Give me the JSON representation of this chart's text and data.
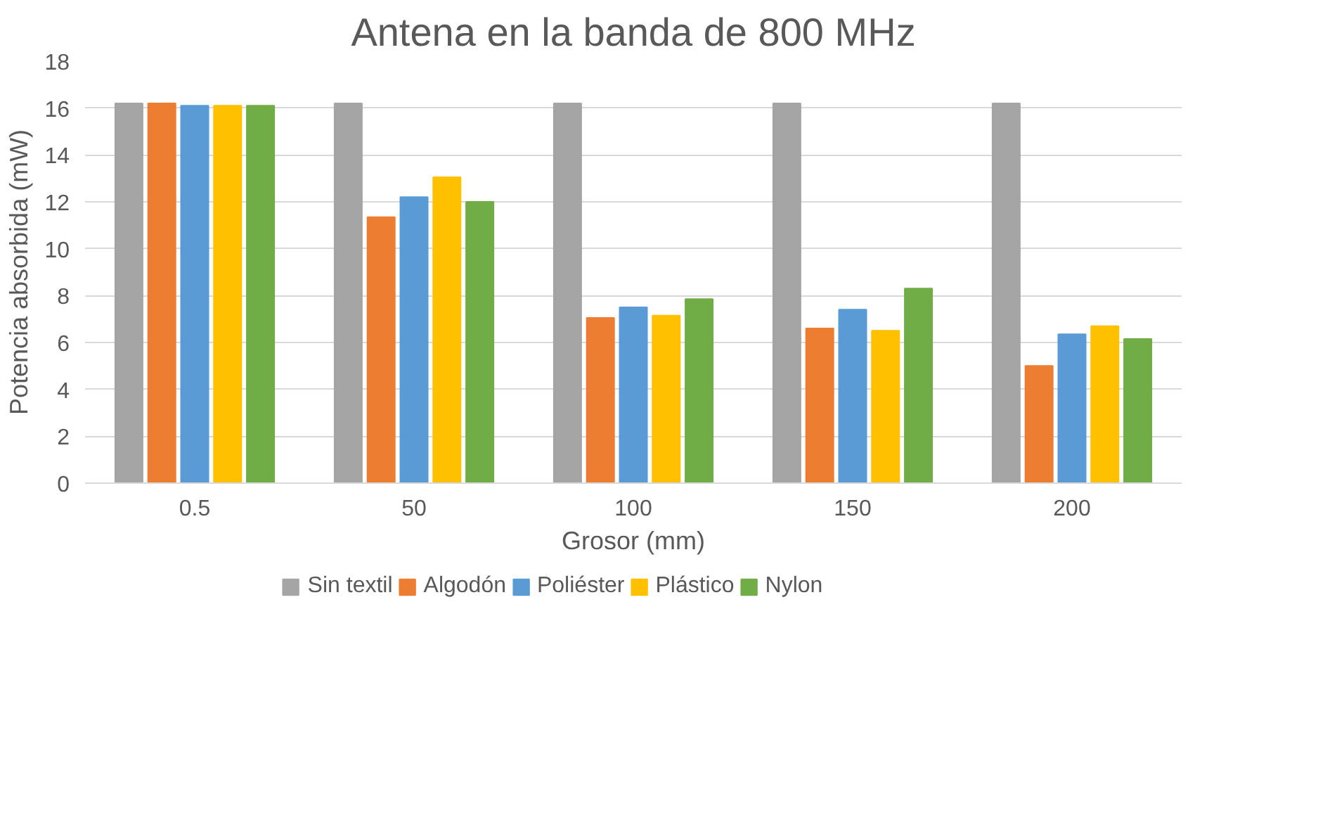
{
  "chart_data": {
    "type": "bar",
    "title": "Antena en la banda de 800 MHz",
    "xlabel": "Grosor (mm)",
    "ylabel": "Potencia absorbida (mW)",
    "categories": [
      "0.5",
      "50",
      "100",
      "150",
      "200"
    ],
    "series": [
      {
        "name": "Sin textil",
        "color": "#a5a5a5",
        "values": [
          16.2,
          16.2,
          16.2,
          16.2,
          16.2
        ]
      },
      {
        "name": "Algodón",
        "color": "#ed7d31",
        "values": [
          16.2,
          11.35,
          7.05,
          6.6,
          5.0
        ]
      },
      {
        "name": "Poliéster",
        "color": "#5b9bd5",
        "values": [
          16.1,
          12.2,
          7.5,
          7.4,
          6.35
        ]
      },
      {
        "name": "Plástico",
        "color": "#ffc000",
        "values": [
          16.1,
          13.05,
          7.15,
          6.5,
          6.7
        ]
      },
      {
        "name": "Nylon",
        "color": "#70ad47",
        "values": [
          16.1,
          12.0,
          7.85,
          8.3,
          6.15
        ]
      }
    ],
    "ylim": [
      0,
      18
    ],
    "yticks": [
      0,
      2,
      4,
      6,
      8,
      10,
      12,
      14,
      16,
      18
    ],
    "grid": "y",
    "legend": "bottom"
  }
}
